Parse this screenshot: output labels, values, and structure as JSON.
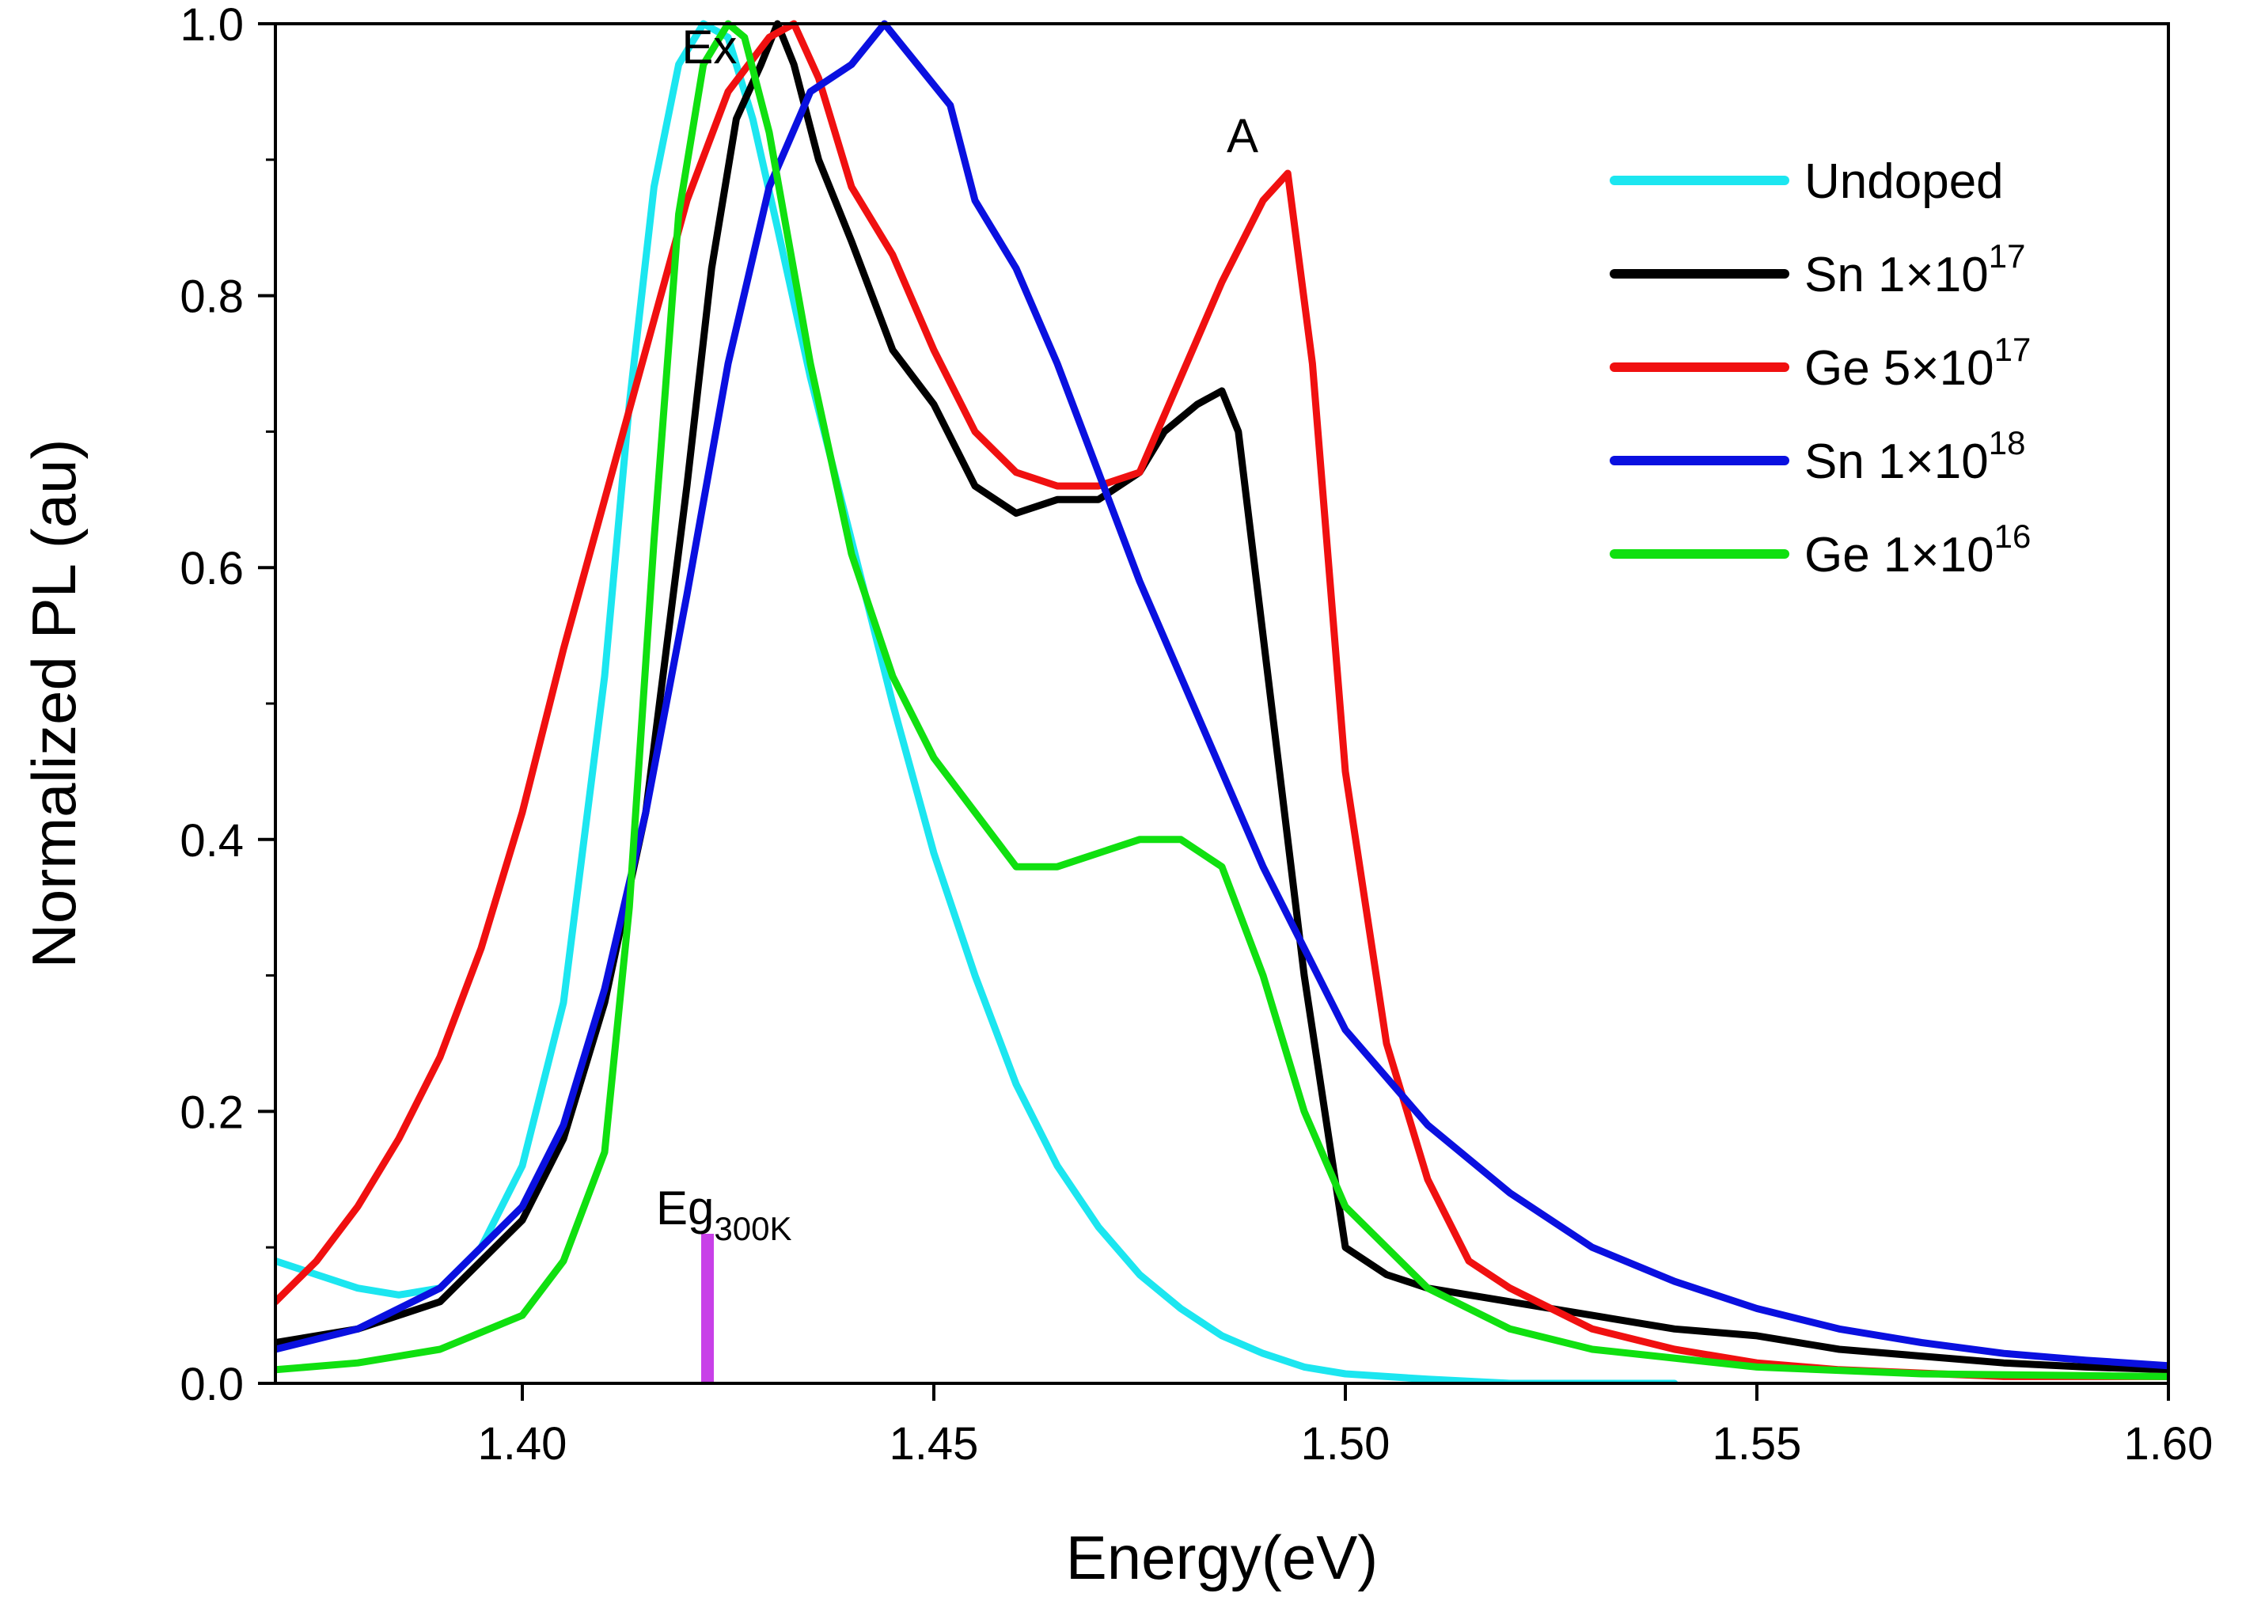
{
  "chart_data": {
    "type": "line",
    "xlabel": "Energy(eV)",
    "ylabel": "Normalized PL (au)",
    "xlim": [
      1.37,
      1.6
    ],
    "ylim": [
      0.0,
      1.0
    ],
    "x_ticks": [
      "1.40",
      "1.45",
      "1.50",
      "1.55",
      "1.60"
    ],
    "y_ticks": [
      "0.0",
      "0.2",
      "0.4",
      "0.6",
      "0.8",
      "1.0"
    ],
    "grid": false,
    "legend_position": "top-right",
    "annotations": [
      {
        "text": "Ex",
        "x": 1.4235,
        "y": 1.0
      },
      {
        "text": "A",
        "x": 1.4875,
        "y": 0.9
      },
      {
        "text": "Eg",
        "sub": "300K",
        "x": 1.4225,
        "y": 0.12
      }
    ],
    "eg_marker": {
      "x": 1.4225,
      "y_from": 0.0,
      "y_to": 0.11,
      "color": "#c840e8"
    },
    "series": [
      {
        "name": "Undoped",
        "color": "#1ce6f0",
        "x": [
          1.37,
          1.375,
          1.38,
          1.385,
          1.39,
          1.395,
          1.4,
          1.405,
          1.41,
          1.413,
          1.416,
          1.419,
          1.422,
          1.425,
          1.428,
          1.431,
          1.435,
          1.44,
          1.445,
          1.45,
          1.455,
          1.46,
          1.465,
          1.47,
          1.475,
          1.48,
          1.485,
          1.49,
          1.495,
          1.5,
          1.51,
          1.52,
          1.54
        ],
        "y": [
          0.09,
          0.08,
          0.07,
          0.065,
          0.07,
          0.1,
          0.16,
          0.28,
          0.52,
          0.72,
          0.88,
          0.97,
          1.0,
          0.99,
          0.93,
          0.85,
          0.74,
          0.62,
          0.5,
          0.39,
          0.3,
          0.22,
          0.16,
          0.115,
          0.08,
          0.055,
          0.035,
          0.022,
          0.012,
          0.007,
          0.003,
          0.0,
          0.0
        ]
      },
      {
        "name": "Sn 1×10",
        "sup": "17",
        "color": "#000000",
        "x": [
          1.37,
          1.38,
          1.39,
          1.4,
          1.405,
          1.41,
          1.415,
          1.42,
          1.423,
          1.426,
          1.429,
          1.431,
          1.433,
          1.436,
          1.44,
          1.445,
          1.45,
          1.455,
          1.46,
          1.465,
          1.47,
          1.475,
          1.478,
          1.482,
          1.485,
          1.487,
          1.49,
          1.495,
          1.5,
          1.505,
          1.51,
          1.52,
          1.53,
          1.54,
          1.55,
          1.56,
          1.57,
          1.58,
          1.59,
          1.6
        ],
        "y": [
          0.03,
          0.04,
          0.06,
          0.12,
          0.18,
          0.28,
          0.42,
          0.66,
          0.82,
          0.93,
          0.97,
          1.0,
          0.97,
          0.9,
          0.84,
          0.76,
          0.72,
          0.66,
          0.64,
          0.65,
          0.65,
          0.67,
          0.7,
          0.72,
          0.73,
          0.7,
          0.55,
          0.3,
          0.1,
          0.08,
          0.07,
          0.06,
          0.05,
          0.04,
          0.035,
          0.025,
          0.02,
          0.015,
          0.012,
          0.01
        ]
      },
      {
        "name": "Ge 5×10",
        "sup": "17",
        "color": "#f01010",
        "x": [
          1.37,
          1.375,
          1.38,
          1.385,
          1.39,
          1.395,
          1.4,
          1.405,
          1.41,
          1.415,
          1.42,
          1.425,
          1.43,
          1.433,
          1.436,
          1.44,
          1.445,
          1.45,
          1.455,
          1.46,
          1.465,
          1.47,
          1.475,
          1.48,
          1.485,
          1.49,
          1.493,
          1.496,
          1.5,
          1.505,
          1.51,
          1.515,
          1.52,
          1.53,
          1.54,
          1.55,
          1.56,
          1.58,
          1.6
        ],
        "y": [
          0.06,
          0.09,
          0.13,
          0.18,
          0.24,
          0.32,
          0.42,
          0.54,
          0.65,
          0.76,
          0.87,
          0.95,
          0.99,
          1.0,
          0.96,
          0.88,
          0.83,
          0.76,
          0.7,
          0.67,
          0.66,
          0.66,
          0.67,
          0.74,
          0.81,
          0.87,
          0.89,
          0.75,
          0.45,
          0.25,
          0.15,
          0.09,
          0.07,
          0.04,
          0.025,
          0.015,
          0.01,
          0.005,
          0.005
        ]
      },
      {
        "name": "Sn 1×10",
        "sup": "18",
        "color": "#0a10e0",
        "x": [
          1.37,
          1.38,
          1.39,
          1.4,
          1.405,
          1.41,
          1.415,
          1.42,
          1.425,
          1.43,
          1.435,
          1.44,
          1.444,
          1.448,
          1.452,
          1.455,
          1.46,
          1.465,
          1.47,
          1.475,
          1.48,
          1.485,
          1.49,
          1.495,
          1.5,
          1.51,
          1.52,
          1.53,
          1.54,
          1.55,
          1.56,
          1.57,
          1.58,
          1.59,
          1.6
        ],
        "y": [
          0.025,
          0.04,
          0.07,
          0.13,
          0.19,
          0.29,
          0.42,
          0.58,
          0.75,
          0.88,
          0.95,
          0.97,
          1.0,
          0.97,
          0.94,
          0.87,
          0.82,
          0.75,
          0.67,
          0.59,
          0.52,
          0.45,
          0.38,
          0.32,
          0.26,
          0.19,
          0.14,
          0.1,
          0.075,
          0.055,
          0.04,
          0.03,
          0.022,
          0.017,
          0.013
        ]
      },
      {
        "name": "Ge 1×10",
        "sup": "16",
        "color": "#10e010",
        "x": [
          1.37,
          1.38,
          1.39,
          1.4,
          1.405,
          1.41,
          1.413,
          1.416,
          1.419,
          1.422,
          1.425,
          1.427,
          1.43,
          1.435,
          1.44,
          1.445,
          1.45,
          1.455,
          1.46,
          1.465,
          1.47,
          1.475,
          1.48,
          1.485,
          1.49,
          1.495,
          1.5,
          1.51,
          1.52,
          1.53,
          1.55,
          1.57,
          1.6
        ],
        "y": [
          0.01,
          0.015,
          0.025,
          0.05,
          0.09,
          0.17,
          0.35,
          0.62,
          0.86,
          0.97,
          1.0,
          0.99,
          0.92,
          0.75,
          0.61,
          0.52,
          0.46,
          0.42,
          0.38,
          0.38,
          0.39,
          0.4,
          0.4,
          0.38,
          0.3,
          0.2,
          0.13,
          0.07,
          0.04,
          0.025,
          0.012,
          0.007,
          0.005
        ]
      }
    ]
  }
}
